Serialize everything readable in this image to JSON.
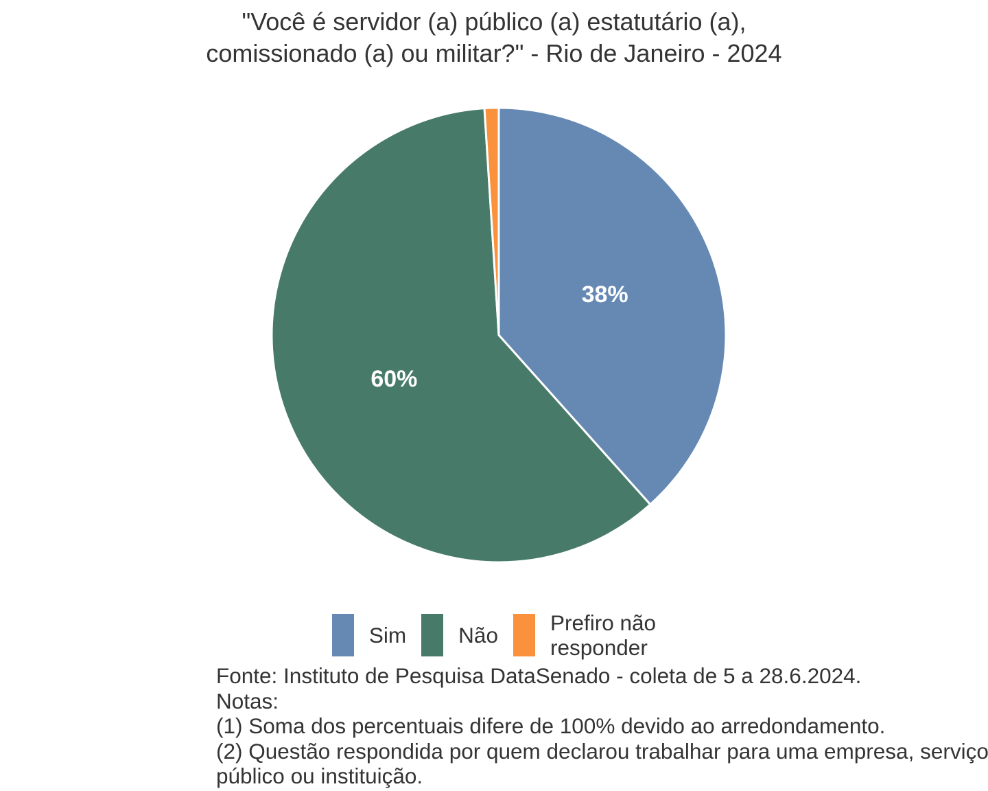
{
  "title": {
    "line1": "\"Você é servidor (a) público (a) estatutário (a),",
    "line2": "comissionado (a) ou militar?\" - Rio de Janeiro - 2024"
  },
  "chart_data": {
    "type": "pie",
    "title": "\"Você é servidor (a) público (a) estatutário (a), comissionado (a) ou militar?\" - Rio de Janeiro - 2024",
    "slices": [
      {
        "label": "Sim",
        "value": 38,
        "value_label": "38%",
        "color": "#6689B4",
        "show_value_label": true
      },
      {
        "label": "Não",
        "value": 60,
        "value_label": "60%",
        "color": "#477A69",
        "show_value_label": true
      },
      {
        "label": "Prefiro não responder",
        "value": 1,
        "value_label": "",
        "color": "#F9913D",
        "show_value_label": false
      }
    ],
    "start_angle_deg": 0,
    "direction": "clockwise",
    "value_label_color": "#FFFFFF",
    "slice_border_color": "#FFFFFF",
    "legend_position": "bottom"
  },
  "legend": {
    "items": [
      {
        "label": "Sim",
        "lines": [
          "Sim"
        ],
        "color": "#6689B4"
      },
      {
        "label": "Não",
        "lines": [
          "Não"
        ],
        "color": "#477A69"
      },
      {
        "label": "Prefiro não responder",
        "lines": [
          "Prefiro não",
          "responder"
        ],
        "color": "#F9913D"
      }
    ]
  },
  "footer": {
    "lines": [
      "Fonte: Instituto de Pesquisa DataSenado - coleta de 5 a 28.6.2024.",
      "Notas:",
      "(1) Soma dos percentuais difere de 100% devido ao arredondamento.",
      "(2) Questão respondida por quem declarou trabalhar para uma empresa, serviço público ou instituição."
    ]
  }
}
